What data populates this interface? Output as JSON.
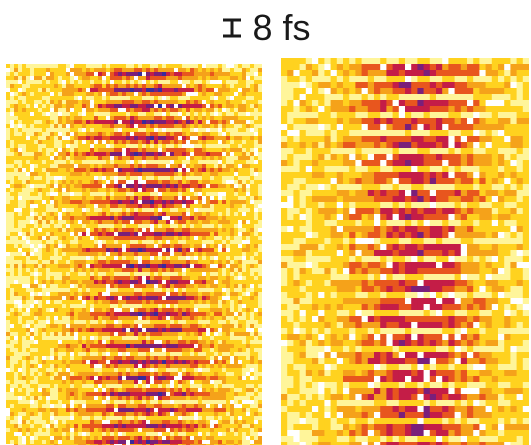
{
  "title": {
    "scale_icon": "scale-bar-icon",
    "label": "8 fs"
  },
  "panels": {
    "left": {
      "icon": "spectrogram-heatmap",
      "colormap": [
        "#ffffff",
        "#fff59a",
        "#ffd21f",
        "#f5a21a",
        "#e8561e",
        "#c41d47",
        "#7a1f7a",
        "#3a2a9a"
      ]
    },
    "right": {
      "icon": "spectrogram-heatmap",
      "colormap": [
        "#ffffff",
        "#fff59a",
        "#ffd21f",
        "#f5a21a",
        "#e8561e",
        "#c41d47",
        "#7a1f7a",
        "#3a2a9a"
      ]
    }
  }
}
